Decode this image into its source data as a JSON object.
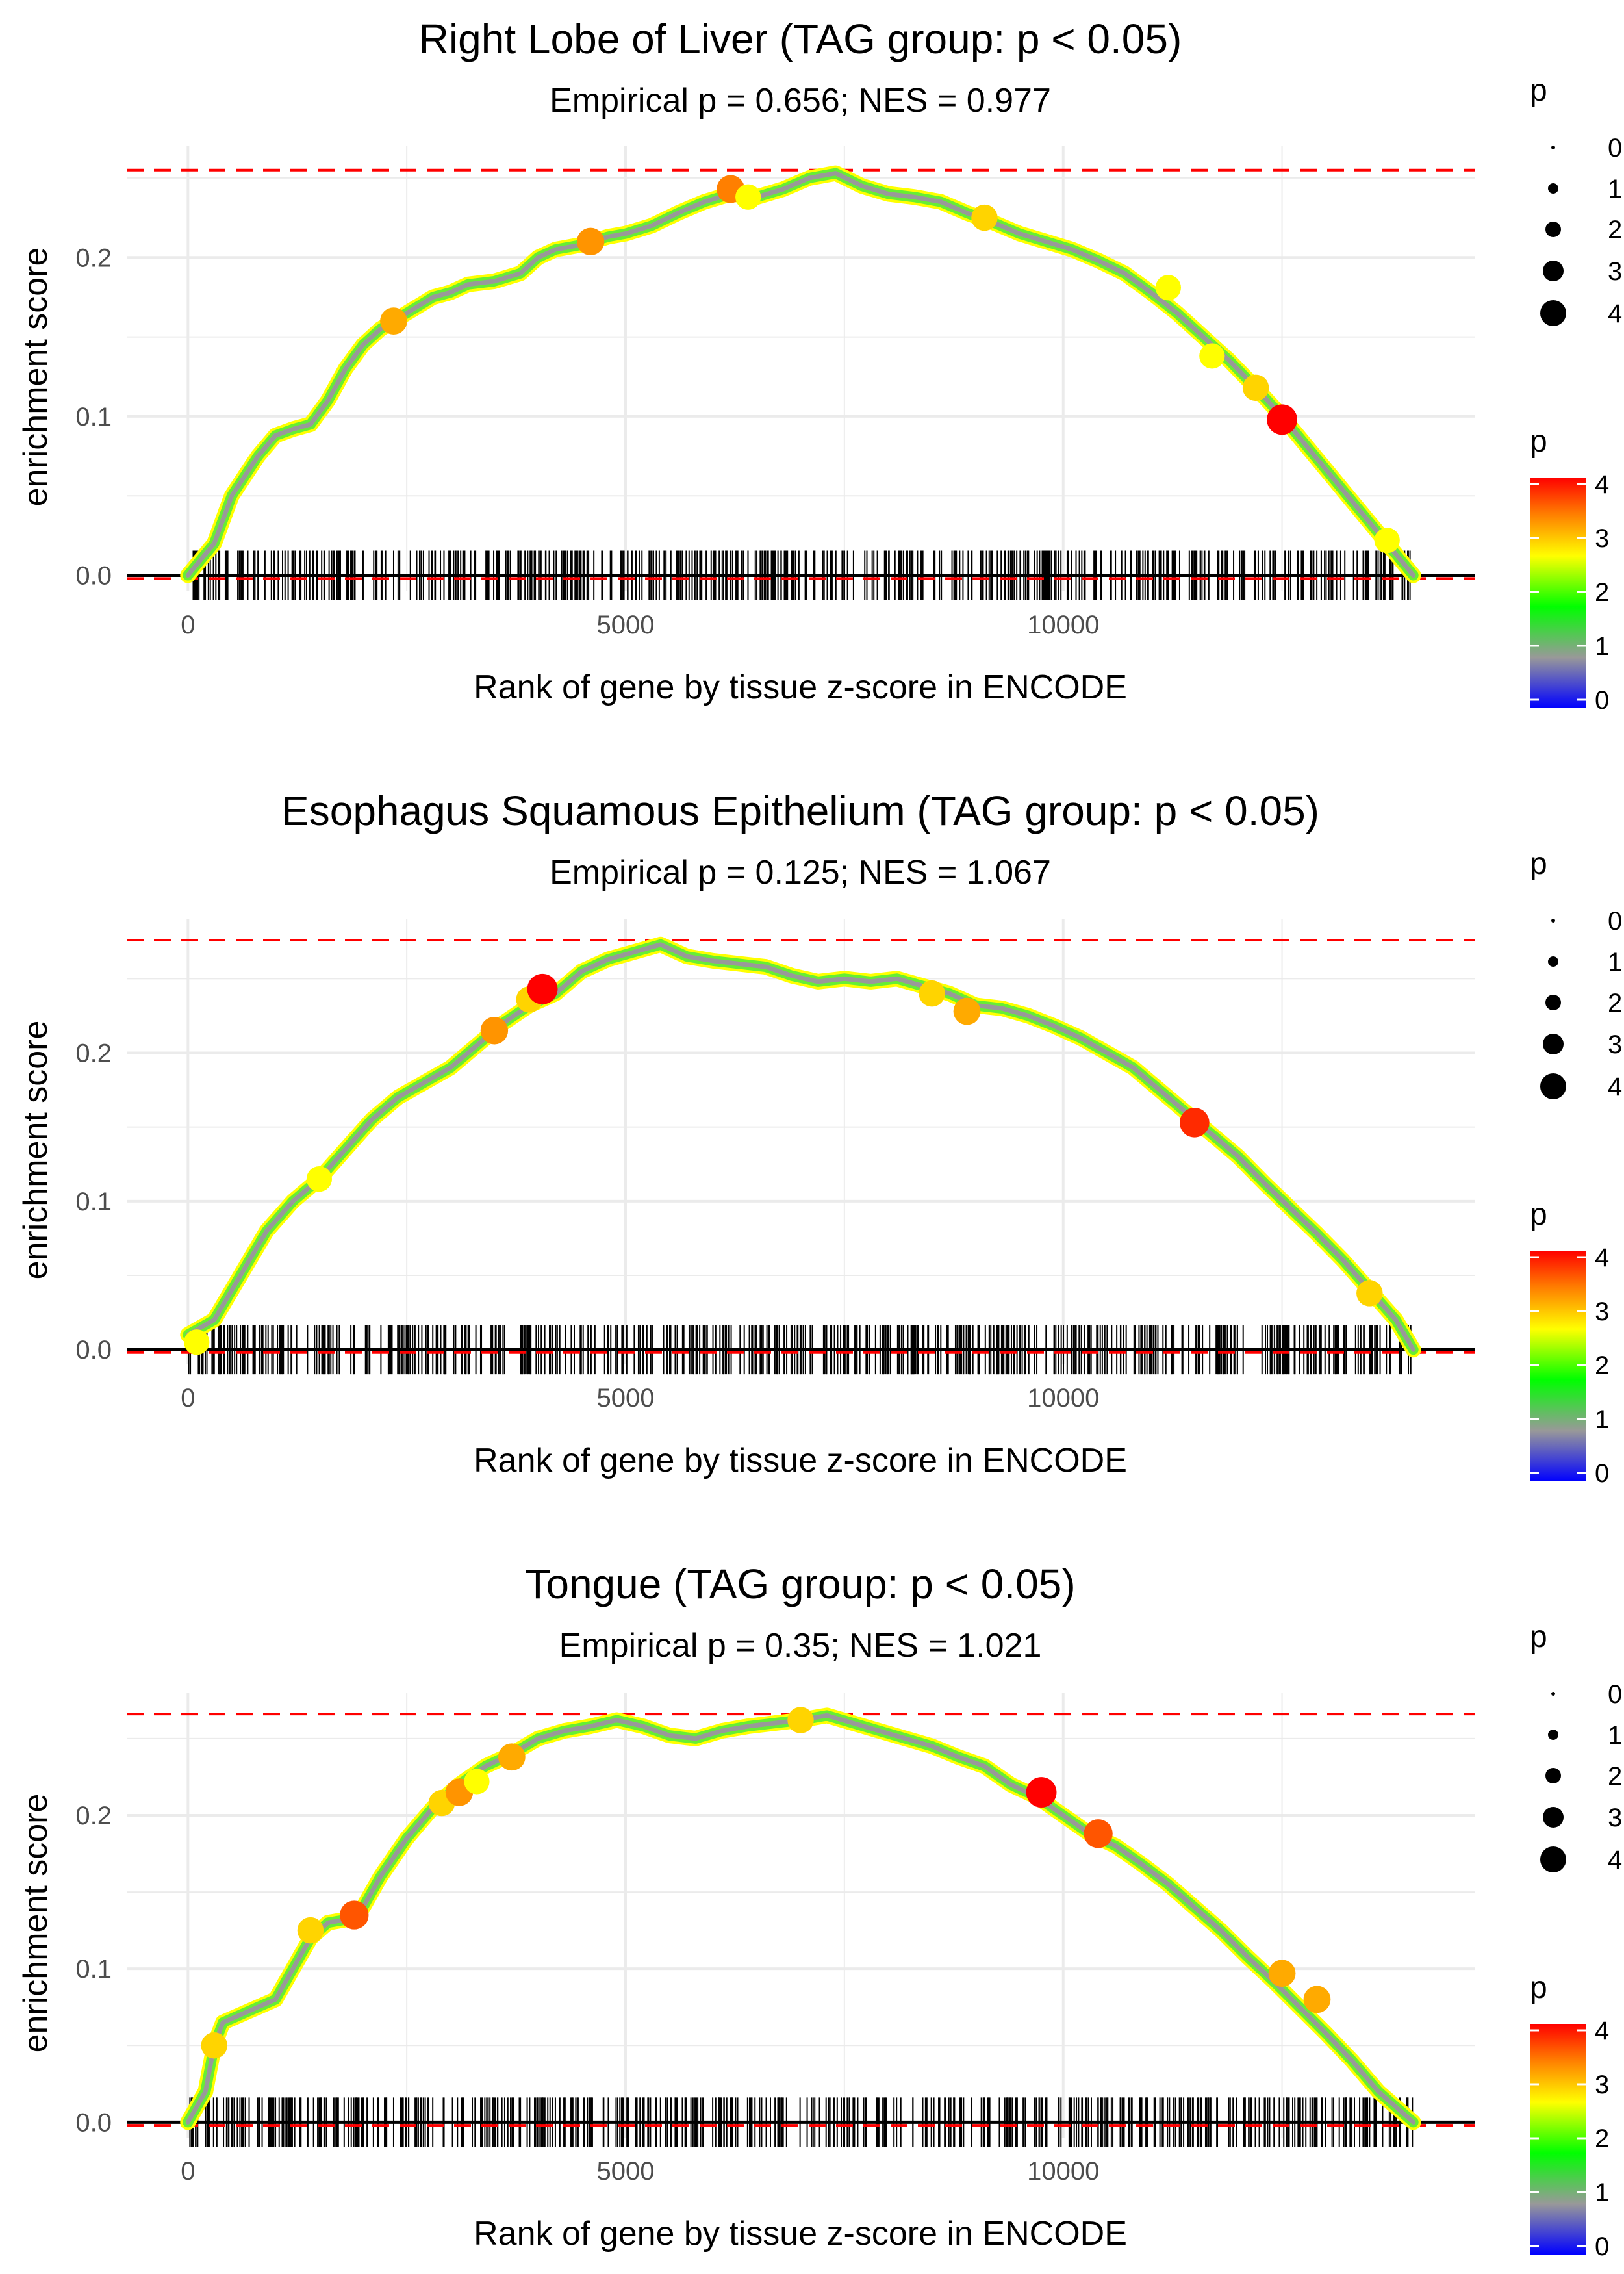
{
  "common": {
    "xlabel": "Rank of gene by tissue z-score in ENCODE",
    "ylabel": "enrichment score",
    "size_legend_title": "p",
    "color_legend_title": "p",
    "size_legend_values": [
      "0",
      "1",
      "2",
      "3",
      "4"
    ],
    "color_legend_ticks": [
      "4",
      "3",
      "2",
      "1",
      "0"
    ],
    "x_ticks": [
      "0",
      "5000",
      "10000"
    ],
    "y_ticks": [
      "0.0",
      "0.1",
      "0.2"
    ],
    "colors": {
      "threshold_line": "#ff0000",
      "baseline": "#000000",
      "grid": "#ebebeb",
      "scale": [
        "#0000ff",
        "#999999",
        "#00ff00",
        "#ffff00",
        "#ff7f00",
        "#ff0000"
      ]
    }
  },
  "chart_data": [
    {
      "type": "line",
      "title": "Right Lobe of Liver (TAG group: p < 0.05)",
      "subtitle": "Empirical p = 0.656; NES = 0.977",
      "xlabel": "Rank of gene by tissue z-score in ENCODE",
      "ylabel": "enrichment score",
      "xlim": [
        -700,
        14700
      ],
      "ylim": [
        -0.01,
        0.27
      ],
      "max_es": 0.255,
      "min_es": -0.002,
      "n_genes": 14000,
      "x": [
        0,
        300,
        500,
        800,
        1000,
        1200,
        1400,
        1600,
        1800,
        2000,
        2200,
        2500,
        2800,
        3000,
        3200,
        3500,
        3800,
        4000,
        4200,
        4500,
        4800,
        5000,
        5300,
        5600,
        5900,
        6200,
        6500,
        6800,
        7100,
        7400,
        7700,
        8000,
        8300,
        8600,
        8900,
        9200,
        9500,
        9800,
        10100,
        10400,
        10700,
        11000,
        11300,
        11600,
        11900,
        12200,
        12500,
        12800,
        13100,
        13400,
        13700,
        14000
      ],
      "y": [
        0.0,
        0.02,
        0.05,
        0.075,
        0.088,
        0.092,
        0.095,
        0.11,
        0.13,
        0.145,
        0.155,
        0.165,
        0.175,
        0.178,
        0.183,
        0.185,
        0.19,
        0.2,
        0.205,
        0.208,
        0.213,
        0.215,
        0.22,
        0.228,
        0.235,
        0.24,
        0.238,
        0.243,
        0.25,
        0.253,
        0.245,
        0.24,
        0.238,
        0.235,
        0.228,
        0.222,
        0.215,
        0.21,
        0.205,
        0.198,
        0.19,
        0.178,
        0.165,
        0.15,
        0.135,
        0.118,
        0.1,
        0.08,
        0.06,
        0.04,
        0.02,
        0.0
      ],
      "p_value_markers": [
        {
          "x": 2350,
          "y": 0.16,
          "p": 3.4
        },
        {
          "x": 4600,
          "y": 0.21,
          "p": 3.5
        },
        {
          "x": 6200,
          "y": 0.243,
          "p": 3.6
        },
        {
          "x": 6400,
          "y": 0.238,
          "p": 3.0
        },
        {
          "x": 9100,
          "y": 0.225,
          "p": 3.2
        },
        {
          "x": 11200,
          "y": 0.181,
          "p": 3.0
        },
        {
          "x": 11700,
          "y": 0.138,
          "p": 3.0
        },
        {
          "x": 12200,
          "y": 0.118,
          "p": 3.2
        },
        {
          "x": 12500,
          "y": 0.098,
          "p": 4.2
        },
        {
          "x": 13700,
          "y": 0.022,
          "p": 3.0
        }
      ]
    },
    {
      "type": "line",
      "title": "Esophagus Squamous Epithelium (TAG group: p < 0.05)",
      "subtitle": "Empirical p = 0.125; NES = 1.067",
      "xlabel": "Rank of gene by tissue z-score in ENCODE",
      "ylabel": "enrichment score",
      "xlim": [
        -700,
        14700
      ],
      "ylim": [
        -0.01,
        0.29
      ],
      "max_es": 0.276,
      "min_es": -0.002,
      "n_genes": 14000,
      "x": [
        0,
        300,
        600,
        900,
        1200,
        1500,
        1800,
        2100,
        2400,
        2700,
        3000,
        3300,
        3600,
        3900,
        4200,
        4500,
        4800,
        5100,
        5400,
        5700,
        6000,
        6300,
        6600,
        6900,
        7200,
        7500,
        7800,
        8100,
        8400,
        8700,
        9000,
        9300,
        9600,
        9900,
        10200,
        10500,
        10800,
        11100,
        11400,
        11700,
        12000,
        12300,
        12600,
        12900,
        13200,
        13500,
        13800,
        14000
      ],
      "y": [
        0.01,
        0.02,
        0.05,
        0.08,
        0.1,
        0.115,
        0.135,
        0.155,
        0.17,
        0.18,
        0.19,
        0.205,
        0.22,
        0.232,
        0.24,
        0.255,
        0.263,
        0.268,
        0.273,
        0.265,
        0.262,
        0.26,
        0.258,
        0.252,
        0.248,
        0.25,
        0.248,
        0.25,
        0.245,
        0.24,
        0.232,
        0.23,
        0.225,
        0.218,
        0.21,
        0.2,
        0.19,
        0.175,
        0.16,
        0.145,
        0.13,
        0.112,
        0.095,
        0.078,
        0.06,
        0.04,
        0.02,
        0.0
      ],
      "p_value_markers": [
        {
          "x": 100,
          "y": 0.005,
          "p": 3.0
        },
        {
          "x": 1500,
          "y": 0.115,
          "p": 3.0
        },
        {
          "x": 3500,
          "y": 0.215,
          "p": 3.5
        },
        {
          "x": 3900,
          "y": 0.236,
          "p": 3.2
        },
        {
          "x": 4050,
          "y": 0.243,
          "p": 4.2
        },
        {
          "x": 8500,
          "y": 0.24,
          "p": 3.2
        },
        {
          "x": 8900,
          "y": 0.228,
          "p": 3.4
        },
        {
          "x": 11500,
          "y": 0.153,
          "p": 4.0
        },
        {
          "x": 13500,
          "y": 0.038,
          "p": 3.2
        }
      ]
    },
    {
      "type": "line",
      "title": "Tongue (TAG group: p < 0.05)",
      "subtitle": "Empirical p = 0.35; NES = 1.021",
      "xlabel": "Rank of gene by tissue z-score in ENCODE",
      "ylabel": "enrichment score",
      "xlim": [
        -700,
        14700
      ],
      "ylim": [
        -0.01,
        0.28
      ],
      "max_es": 0.266,
      "min_es": -0.002,
      "n_genes": 14000,
      "x": [
        0,
        200,
        300,
        400,
        600,
        800,
        1000,
        1200,
        1400,
        1600,
        1800,
        2000,
        2200,
        2500,
        2800,
        3100,
        3400,
        3700,
        4000,
        4300,
        4600,
        4900,
        5200,
        5500,
        5800,
        6100,
        6400,
        6700,
        7000,
        7300,
        7600,
        7900,
        8200,
        8500,
        8800,
        9100,
        9400,
        9700,
        10000,
        10300,
        10600,
        10900,
        11200,
        11500,
        11800,
        12100,
        12400,
        12700,
        13000,
        13300,
        13600,
        14000
      ],
      "y": [
        0.0,
        0.02,
        0.05,
        0.065,
        0.07,
        0.075,
        0.08,
        0.1,
        0.12,
        0.13,
        0.132,
        0.14,
        0.16,
        0.185,
        0.205,
        0.22,
        0.232,
        0.24,
        0.25,
        0.255,
        0.258,
        0.262,
        0.258,
        0.252,
        0.25,
        0.255,
        0.258,
        0.26,
        0.262,
        0.265,
        0.26,
        0.255,
        0.25,
        0.245,
        0.238,
        0.232,
        0.22,
        0.212,
        0.2,
        0.188,
        0.18,
        0.168,
        0.155,
        0.14,
        0.125,
        0.108,
        0.092,
        0.075,
        0.058,
        0.04,
        0.02,
        0.0
      ],
      "p_value_markers": [
        {
          "x": 300,
          "y": 0.05,
          "p": 3.2
        },
        {
          "x": 1400,
          "y": 0.125,
          "p": 3.2
        },
        {
          "x": 1900,
          "y": 0.135,
          "p": 3.8
        },
        {
          "x": 2900,
          "y": 0.208,
          "p": 3.2
        },
        {
          "x": 3100,
          "y": 0.215,
          "p": 3.5
        },
        {
          "x": 3300,
          "y": 0.222,
          "p": 3.0
        },
        {
          "x": 3700,
          "y": 0.238,
          "p": 3.4
        },
        {
          "x": 7000,
          "y": 0.262,
          "p": 3.2
        },
        {
          "x": 9750,
          "y": 0.215,
          "p": 4.2
        },
        {
          "x": 10400,
          "y": 0.188,
          "p": 3.8
        },
        {
          "x": 12500,
          "y": 0.097,
          "p": 3.4
        },
        {
          "x": 12900,
          "y": 0.08,
          "p": 3.4
        }
      ]
    }
  ]
}
